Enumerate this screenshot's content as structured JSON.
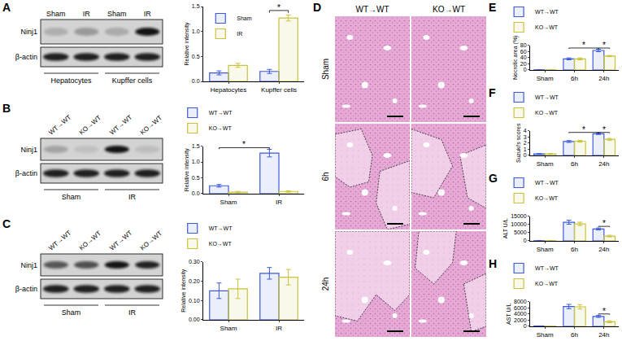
{
  "chart_data": [
    {
      "type": "bar",
      "categories": [
        "Hepatocytes",
        "Kupffer cells"
      ],
      "ylabel": "Relative intensity",
      "ylim": [
        0,
        1.5
      ],
      "yticks": [
        {
          "value": 0,
          "label": "0.0"
        },
        0.5,
        {
          "value": 1,
          "label": "1.0"
        },
        1.5
      ],
      "legend": "upper left",
      "series": [
        {
          "name": "Sham",
          "color": "#3d5bd9",
          "values": [
            0.17,
            0.2
          ],
          "errors": [
            0.04,
            0.04
          ]
        },
        {
          "name": "IR",
          "color": "#c9c23b",
          "values": [
            0.32,
            1.27
          ],
          "errors": [
            0.04,
            0.06
          ]
        }
      ],
      "annotations": [
        {
          "text": "*",
          "from": {
            "category": 1,
            "series": 0
          },
          "to": {
            "category": 1,
            "series": 1
          },
          "y": 1.42
        }
      ]
    },
    {
      "type": "bar",
      "categories": [
        "Sham",
        "IR"
      ],
      "ylabel": "Relative intensity",
      "ylim": [
        0,
        1.5
      ],
      "yticks": [
        {
          "value": 0,
          "label": "0.0"
        },
        0.5,
        {
          "value": 1,
          "label": "1.0"
        },
        1.5
      ],
      "legend": "top",
      "series": [
        {
          "name": "WT→WT",
          "color": "#3d5bd9",
          "values": [
            0.25,
            1.28
          ],
          "errors": [
            0.04,
            0.12
          ]
        },
        {
          "name": "KO→WT",
          "color": "#c9c23b",
          "values": [
            0.05,
            0.07
          ],
          "errors": [
            0.02,
            0.02
          ]
        }
      ],
      "annotations": [
        {
          "text": "*",
          "from": {
            "category": 0,
            "series": 0
          },
          "to": {
            "category": 1,
            "series": 0
          },
          "y": 1.45
        }
      ]
    },
    {
      "type": "bar",
      "categories": [
        "Sham",
        "IR"
      ],
      "ylabel": "Relative intensity",
      "ylim": [
        0,
        0.3
      ],
      "yticks": [
        {
          "value": 0,
          "label": "0.00"
        },
        {
          "value": 0.1,
          "label": "0.10"
        },
        {
          "value": 0.2,
          "label": "0.20"
        },
        {
          "value": 0.3,
          "label": "0.30"
        }
      ],
      "legend": "top",
      "series": [
        {
          "name": "WT→WT",
          "color": "#3d5bd9",
          "values": [
            0.15,
            0.24
          ],
          "errors": [
            0.04,
            0.03
          ]
        },
        {
          "name": "KO→WT",
          "color": "#c9c23b",
          "values": [
            0.16,
            0.22
          ],
          "errors": [
            0.05,
            0.04
          ]
        }
      ],
      "annotations": []
    },
    {
      "type": "bar",
      "panel": "E",
      "categories": [
        "Sham",
        "6h",
        "24h"
      ],
      "ylabel": "Necrotic area (%)",
      "ylim": [
        0,
        80
      ],
      "yticks": [
        0,
        20,
        40,
        60,
        80
      ],
      "legend": "top",
      "series": [
        {
          "name": "WT→WT",
          "color": "#3d5bd9",
          "values": [
            0.5,
            36,
            63
          ],
          "errors": [
            0.3,
            3,
            4
          ]
        },
        {
          "name": "KO→WT",
          "color": "#c9c23b",
          "values": [
            0.5,
            36,
            45
          ],
          "errors": [
            0.3,
            3,
            2
          ]
        }
      ],
      "annotations": [
        {
          "text": "*",
          "from": {
            "category": 1,
            "series": 0
          },
          "to": {
            "category": 2,
            "series": 0
          },
          "y": 71
        },
        {
          "text": "*",
          "from": {
            "category": 2,
            "series": 0
          },
          "to": {
            "category": 2,
            "series": 1
          },
          "y": 71
        }
      ]
    },
    {
      "type": "bar",
      "panel": "F",
      "categories": [
        "Sham",
        "6h",
        "24h"
      ],
      "ylabel": "Suzuki's scores",
      "ylim": [
        0,
        4
      ],
      "yticks": [
        0,
        1,
        2,
        3,
        4
      ],
      "legend": "top",
      "series": [
        {
          "name": "WT→WT",
          "color": "#3d5bd9",
          "values": [
            0.25,
            2.25,
            3.5
          ],
          "errors": [
            0.05,
            0.15,
            0.12
          ]
        },
        {
          "name": "KO→WT",
          "color": "#c9c23b",
          "values": [
            0.25,
            2.3,
            2.6
          ],
          "errors": [
            0.05,
            0.15,
            0.15
          ]
        }
      ],
      "annotations": [
        {
          "text": "*",
          "from": {
            "category": 1,
            "series": 0
          },
          "to": {
            "category": 2,
            "series": 0
          },
          "y": 3.72
        },
        {
          "text": "*",
          "from": {
            "category": 2,
            "series": 0
          },
          "to": {
            "category": 2,
            "series": 1
          },
          "y": 3.72
        }
      ]
    },
    {
      "type": "bar",
      "panel": "G",
      "categories": [
        "Sham",
        "6h",
        "24h"
      ],
      "ylabel": "ALT U/L",
      "ylim": [
        0,
        15000
      ],
      "yticks": [
        0,
        5000,
        10000,
        15000
      ],
      "legend": "top",
      "series": [
        {
          "name": "WT→WT",
          "color": "#3d5bd9",
          "values": [
            100,
            11300,
            7200
          ],
          "errors": [
            50,
            1200,
            600
          ]
        },
        {
          "name": "KO→WT",
          "color": "#c9c23b",
          "values": [
            100,
            10300,
            2900
          ],
          "errors": [
            50,
            1000,
            500
          ]
        }
      ],
      "annotations": [
        {
          "text": "*",
          "from": {
            "category": 2,
            "series": 0
          },
          "to": {
            "category": 2,
            "series": 1
          },
          "y": 8800
        }
      ]
    },
    {
      "type": "bar",
      "panel": "H",
      "categories": [
        "Sham",
        "6h",
        "24h"
      ],
      "ylabel": "AST U/L",
      "ylim": [
        0,
        8000
      ],
      "yticks": [
        0,
        2000,
        4000,
        6000,
        8000
      ],
      "legend": "top",
      "series": [
        {
          "name": "WT→WT",
          "color": "#3d5bd9",
          "values": [
            100,
            6400,
            3200
          ],
          "errors": [
            50,
            700,
            300
          ]
        },
        {
          "name": "KO→WT",
          "color": "#c9c23b",
          "values": [
            100,
            6300,
            1500
          ],
          "errors": [
            50,
            700,
            300
          ]
        }
      ],
      "annotations": [
        {
          "text": "*",
          "from": {
            "category": 2,
            "series": 0
          },
          "to": {
            "category": 2,
            "series": 1
          },
          "y": 4000
        }
      ]
    }
  ],
  "blots": [
    {
      "panel": "A",
      "rows": [
        "Ninj1",
        "β-actin"
      ]
    },
    {
      "panel": "B",
      "rows": [
        "Ninj1",
        "β-actin"
      ]
    },
    {
      "panel": "C",
      "rows": [
        "Ninj1",
        "β-actin"
      ]
    }
  ],
  "histology": {
    "panel": "D",
    "columns": [
      "WT→WT",
      "KO→WT"
    ],
    "rows": [
      "Sham",
      "6h",
      "24h"
    ]
  }
}
